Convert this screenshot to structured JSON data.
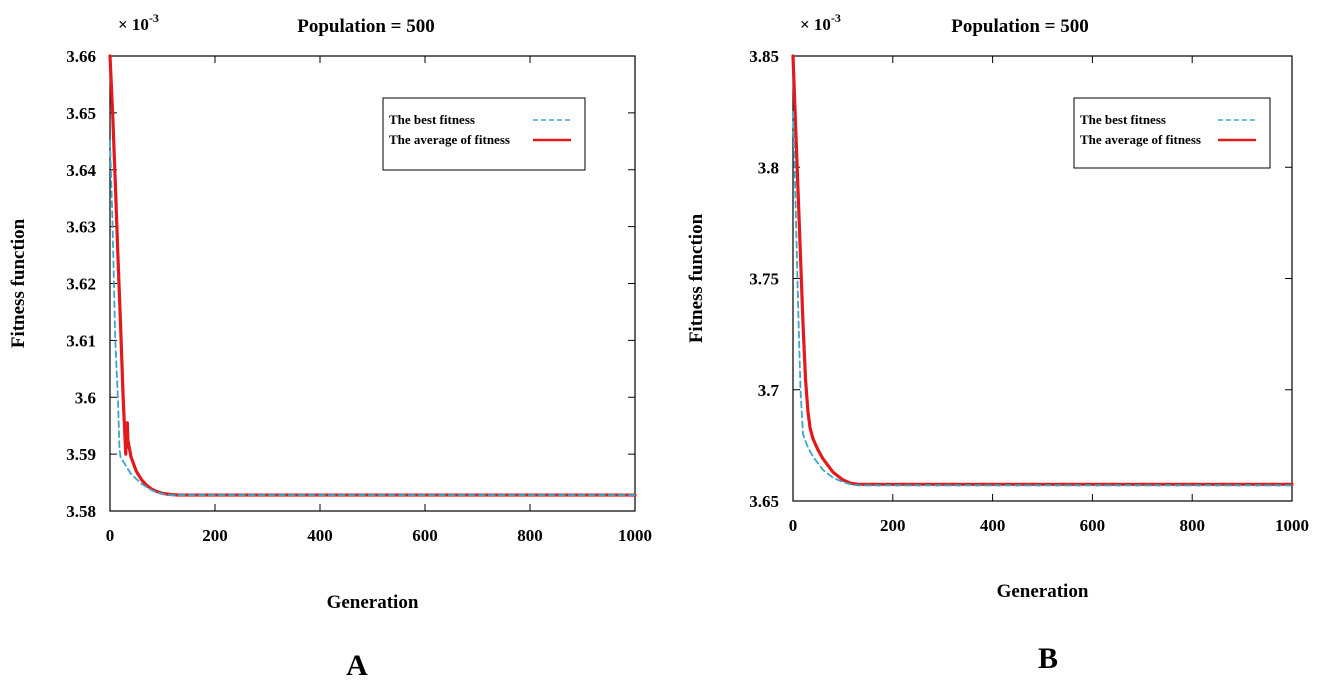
{
  "chart_data": [
    {
      "type": "line",
      "panel_label": "A",
      "title": "Population = 500",
      "xlabel": "Generation",
      "ylabel": "Fitness function",
      "y_multiplier": "× 10",
      "y_exponent": "-3",
      "xlim": [
        0,
        1000
      ],
      "ylim": [
        3.58,
        3.66
      ],
      "x_ticks": [
        0,
        200,
        400,
        600,
        800,
        1000
      ],
      "y_ticks": [
        3.58,
        3.59,
        3.6,
        3.61,
        3.62,
        3.63,
        3.64,
        3.65,
        3.66
      ],
      "y_tick_labels": [
        "3.58",
        "3.59",
        "3.6",
        "3.61",
        "3.62",
        "3.63",
        "3.64",
        "3.65",
        "3.66"
      ],
      "legend_position": "top-right",
      "series": [
        {
          "name": "The best fitness",
          "color": "#3aa6c8",
          "style": "dashed",
          "x": [
            0,
            5,
            10,
            15,
            18,
            20,
            30,
            40,
            60,
            80,
            100,
            115,
            130,
            200,
            400,
            600,
            800,
            1000
          ],
          "y": [
            3.645,
            3.63,
            3.61,
            3.6,
            3.591,
            3.5895,
            3.588,
            3.5865,
            3.5848,
            3.5836,
            3.583,
            3.5828,
            3.5828,
            3.5828,
            3.5828,
            3.5828,
            3.5828,
            3.5828
          ]
        },
        {
          "name": "The average of fitness",
          "color": "#e31a1c",
          "style": "solid",
          "x": [
            0,
            5,
            10,
            15,
            20,
            25,
            30,
            33,
            34,
            40,
            50,
            60,
            70,
            80,
            90,
            100,
            115,
            130,
            200,
            400,
            600,
            800,
            1000
          ],
          "y": [
            3.66,
            3.65,
            3.638,
            3.625,
            3.613,
            3.6,
            3.59,
            3.5955,
            3.5925,
            3.5895,
            3.587,
            3.5855,
            3.5845,
            3.5838,
            3.5834,
            3.5831,
            3.5829,
            3.5828,
            3.5828,
            3.5828,
            3.5828,
            3.5828,
            3.5828
          ]
        }
      ]
    },
    {
      "type": "line",
      "panel_label": "B",
      "title": "Population = 500",
      "xlabel": "Generation",
      "ylabel": "Fitness function",
      "y_multiplier": "× 10",
      "y_exponent": "-3",
      "xlim": [
        0,
        1000
      ],
      "ylim": [
        3.65,
        3.85
      ],
      "x_ticks": [
        0,
        200,
        400,
        600,
        800,
        1000
      ],
      "y_ticks": [
        3.65,
        3.7,
        3.75,
        3.8,
        3.85
      ],
      "y_tick_labels": [
        "3.65",
        "3.7",
        "3.75",
        "3.8",
        "3.85"
      ],
      "legend_position": "top-right",
      "series": [
        {
          "name": "The best fitness",
          "color": "#3aa6c8",
          "style": "dashed",
          "x": [
            0,
            5,
            10,
            15,
            20,
            25,
            30,
            40,
            50,
            60,
            80,
            100,
            115,
            130,
            200,
            400,
            600,
            800,
            1000
          ],
          "y": [
            3.825,
            3.785,
            3.74,
            3.7,
            3.68,
            3.677,
            3.674,
            3.67,
            3.667,
            3.664,
            3.6605,
            3.6585,
            3.6575,
            3.657,
            3.657,
            3.657,
            3.657,
            3.657,
            3.657
          ]
        },
        {
          "name": "The average of fitness",
          "color": "#e31a1c",
          "style": "solid",
          "x": [
            0,
            5,
            10,
            15,
            20,
            25,
            30,
            33,
            34,
            40,
            50,
            60,
            80,
            100,
            115,
            130,
            200,
            400,
            600,
            800,
            1000
          ],
          "y": [
            3.85,
            3.82,
            3.79,
            3.76,
            3.73,
            3.705,
            3.69,
            3.685,
            3.683,
            3.678,
            3.673,
            3.669,
            3.663,
            3.6595,
            3.658,
            3.6575,
            3.6575,
            3.6575,
            3.6575,
            3.6575,
            3.6575
          ]
        }
      ]
    }
  ]
}
